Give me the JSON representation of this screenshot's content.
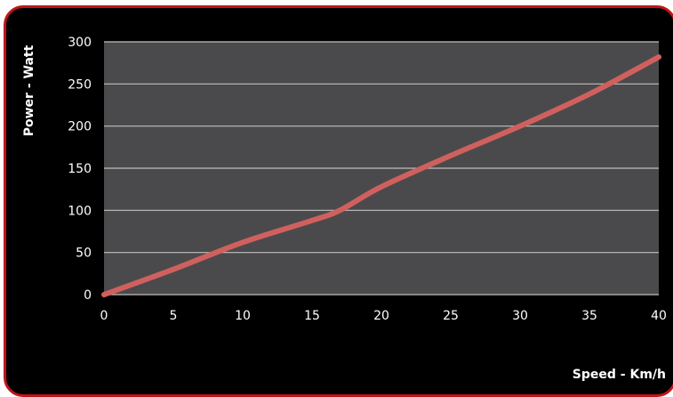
{
  "chart_data": {
    "type": "line",
    "title": "",
    "xlabel": "Speed - Km/h",
    "ylabel": "Power - Watt",
    "xlim": [
      0,
      40
    ],
    "ylim": [
      0,
      300
    ],
    "xticks": [
      0,
      5,
      10,
      15,
      20,
      25,
      30,
      35,
      40
    ],
    "yticks": [
      0,
      50,
      100,
      150,
      200,
      250,
      300
    ],
    "grid": true,
    "legend": "none",
    "series": [
      {
        "color": "#d0605e",
        "x": [
          0,
          5,
          10,
          15,
          17,
          20,
          25,
          30,
          35,
          40
        ],
        "y": [
          0,
          30,
          62,
          88,
          100,
          128,
          165,
          200,
          238,
          282
        ]
      }
    ]
  },
  "colors": {
    "frame_border": "#c0141c",
    "background": "#000000",
    "plot_area": "#4a4a4c",
    "gridline": "#bfbfbf",
    "line": "#d0605e"
  }
}
